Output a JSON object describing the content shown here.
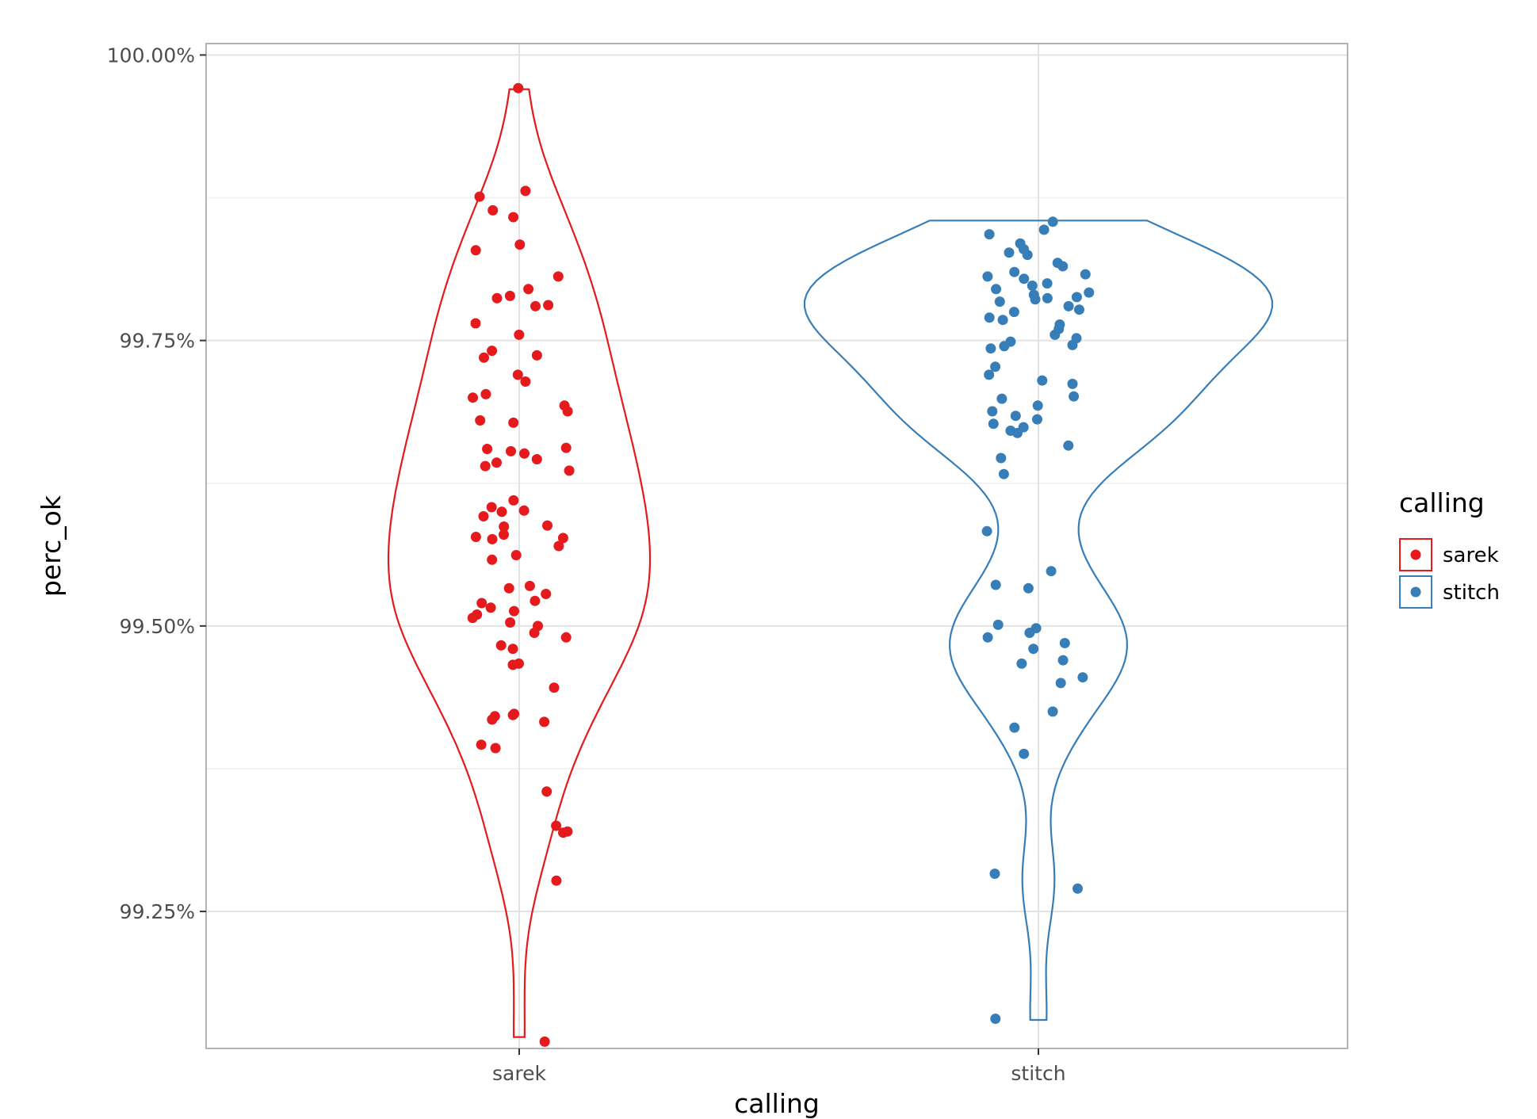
{
  "chart_data": {
    "type": "violin",
    "xlabel": "calling",
    "ylabel": "perc_ok",
    "ylim": [
      99.13,
      100.01
    ],
    "y_ticks": [
      99.25,
      99.5,
      99.75,
      100.0
    ],
    "y_tick_labels": [
      "99.25%",
      "99.50%",
      "99.75%",
      "100.00%"
    ],
    "categories": [
      "sarek",
      "stitch"
    ],
    "legend": {
      "title": "calling",
      "position": "right",
      "entries": [
        "sarek",
        "stitch"
      ]
    },
    "grid": true,
    "series": [
      {
        "name": "sarek",
        "color": "#e41a1c",
        "points": [
          99.971,
          99.881,
          99.876,
          99.864,
          99.858,
          99.834,
          99.829,
          99.806,
          99.795,
          99.789,
          99.787,
          99.781,
          99.78,
          99.765,
          99.755,
          99.741,
          99.737,
          99.735,
          99.714,
          99.72,
          99.703,
          99.7,
          99.693,
          99.688,
          99.68,
          99.678,
          99.656,
          99.655,
          99.653,
          99.651,
          99.646,
          99.643,
          99.64,
          99.636,
          99.61,
          99.604,
          99.601,
          99.6,
          99.596,
          99.588,
          99.587,
          99.58,
          99.578,
          99.577,
          99.576,
          99.57,
          99.562,
          99.558,
          99.535,
          99.533,
          99.528,
          99.522,
          99.52,
          99.516,
          99.513,
          99.51,
          99.507,
          99.503,
          99.5,
          99.494,
          99.49,
          99.483,
          99.48,
          99.467,
          99.466,
          99.446,
          99.423,
          99.422,
          99.421,
          99.418,
          99.416,
          99.396,
          99.393,
          99.355,
          99.325,
          99.32,
          99.319,
          99.277,
          99.136
        ],
        "violin_range": [
          99.14,
          99.97
        ]
      },
      {
        "name": "stitch",
        "color": "#377eb8",
        "points": [
          99.854,
          99.847,
          99.843,
          99.835,
          99.83,
          99.827,
          99.825,
          99.818,
          99.815,
          99.81,
          99.808,
          99.806,
          99.804,
          99.8,
          99.798,
          99.795,
          99.792,
          99.79,
          99.788,
          99.787,
          99.786,
          99.784,
          99.78,
          99.777,
          99.775,
          99.77,
          99.768,
          99.764,
          99.76,
          99.755,
          99.752,
          99.749,
          99.746,
          99.745,
          99.743,
          99.727,
          99.72,
          99.715,
          99.712,
          99.701,
          99.699,
          99.693,
          99.688,
          99.684,
          99.681,
          99.677,
          99.674,
          99.671,
          99.669,
          99.658,
          99.647,
          99.633,
          99.583,
          99.548,
          99.536,
          99.533,
          99.501,
          99.498,
          99.494,
          99.49,
          99.485,
          99.48,
          99.47,
          99.467,
          99.455,
          99.45,
          99.425,
          99.411,
          99.388,
          99.283,
          99.27,
          99.156
        ],
        "violin_range": [
          99.155,
          99.855
        ]
      }
    ]
  }
}
